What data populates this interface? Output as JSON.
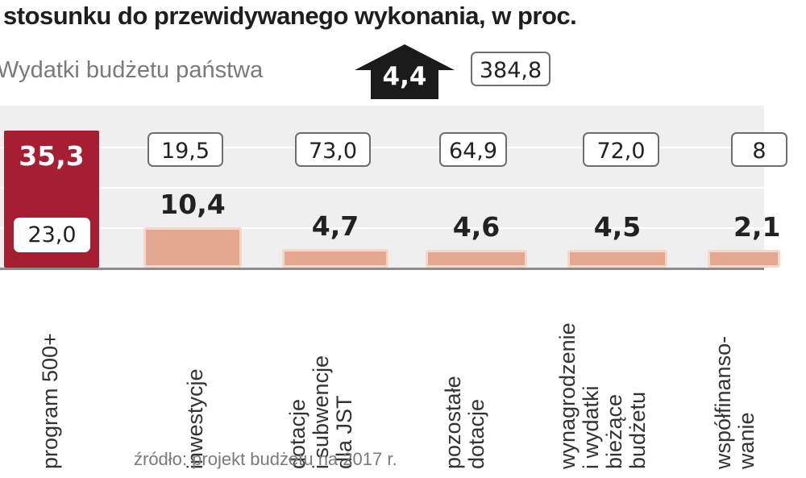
{
  "header": {
    "title": "stosunku do przewidywanego wykonania, w proc.",
    "subtitle": "Wydatki budżetu państwa",
    "total_change": "4,4",
    "total_amount": "384,8"
  },
  "source": "źródło: projekt budżetu na 2017 r.",
  "colors": {
    "highlight_bar": "#a51e32",
    "bar": "#e3a88f",
    "plot_background": "#efefef"
  },
  "chart_data": {
    "type": "bar",
    "title": "stosunku do przewidywanego wykonania, w proc.",
    "subtitle": "Wydatki budżetu państwa",
    "categories": [
      [
        "program 500+"
      ],
      [
        "inwestycje"
      ],
      [
        "dotacje",
        "i subwencje",
        "dla JST"
      ],
      [
        "pozostałe",
        "dotacje"
      ],
      [
        "wynagrodzenie",
        "i wydatki",
        "bieżące",
        "budżetu"
      ],
      [
        "współfinanso-",
        "wanie"
      ]
    ],
    "values": [
      35.3,
      10.4,
      4.7,
      4.6,
      4.5,
      2.1
    ],
    "value_labels": [
      "35,3",
      "10,4",
      "4,7",
      "4,6",
      "4,5",
      "2,1"
    ],
    "amount_labels": [
      "23,0",
      "19,5",
      "73,0",
      "64,9",
      "72,0",
      "8"
    ],
    "annotation": {
      "change": "4,4",
      "amount": "384,8"
    }
  }
}
